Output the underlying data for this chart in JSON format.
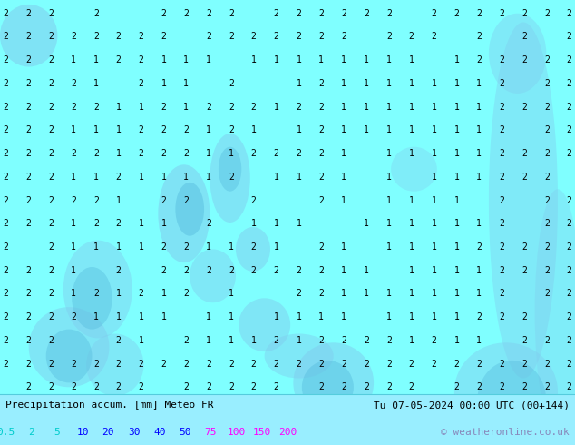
{
  "title_left": "Precipitation accum. [mm] Meteo FR",
  "title_right": "Tu 07-05-2024 00:00 UTC (00+144)",
  "copyright": "© weatheronline.co.uk",
  "legend_strs": [
    "0.5",
    "2",
    "5",
    "10",
    "20",
    "30",
    "40",
    "50",
    "75",
    "100",
    "150",
    "200"
  ],
  "legend_text_colors": [
    "#00cccc",
    "#00cccc",
    "#00cccc",
    "#0000ff",
    "#0000ff",
    "#0000ff",
    "#0000ff",
    "#0000ff",
    "#ff00ff",
    "#ff00ff",
    "#ff00ff",
    "#ff00ff"
  ],
  "bg_color": "#7fffff",
  "sea_color": "#7fffff",
  "land_color": "#aaddff",
  "precip_color_low": "#80ccee",
  "precip_color_mid": "#55bbdd",
  "bar_bg_color": "#99eeff",
  "coast_color": "#c8a090",
  "numbers_color": "#000000",
  "fig_width": 6.34,
  "fig_height": 4.9,
  "dpi": 100
}
